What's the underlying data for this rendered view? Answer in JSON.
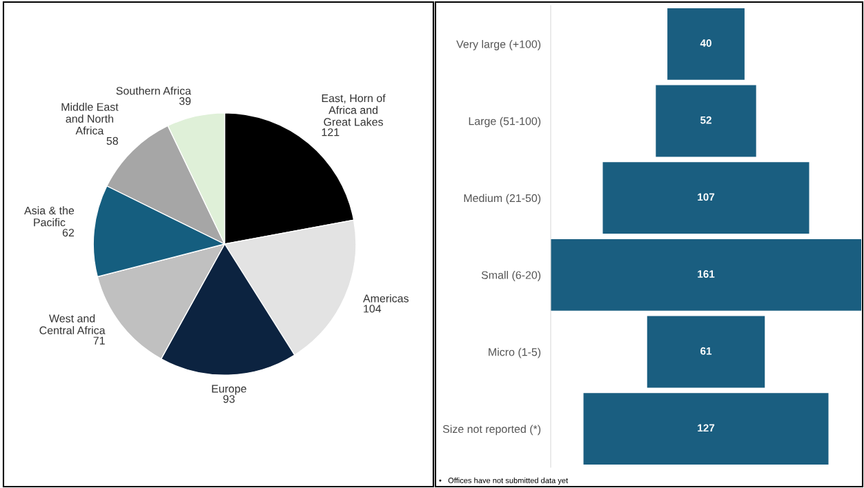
{
  "chart_data": [
    {
      "type": "pie",
      "categories": [
        "East, Horn of\nAfrica and\nGreat Lakes",
        "Americas",
        "Europe",
        "West and\nCentral Africa",
        "Asia & the\nPacific",
        "Middle East\nand North\nAfrica",
        "Southern Africa"
      ],
      "values": [
        121,
        104,
        93,
        71,
        62,
        58,
        39
      ],
      "colors": [
        "#000000",
        "#e3e3e3",
        "#0c2340",
        "#c0c0c0",
        "#155e7f",
        "#a6a6a6",
        "#dff0d8"
      ],
      "data_labels": true
    },
    {
      "type": "other",
      "categories": [
        "Very large (+100)",
        "Large (51-100)",
        "Medium (21-50)",
        "Small (6-20)",
        "Micro (1-5)",
        "Size not reported (*)"
      ],
      "values": [
        40,
        52,
        107,
        161,
        61,
        127
      ],
      "color": "#1a5e80",
      "data_labels": true,
      "annotations": [
        "•   Offices have not submitted data yet"
      ]
    }
  ]
}
